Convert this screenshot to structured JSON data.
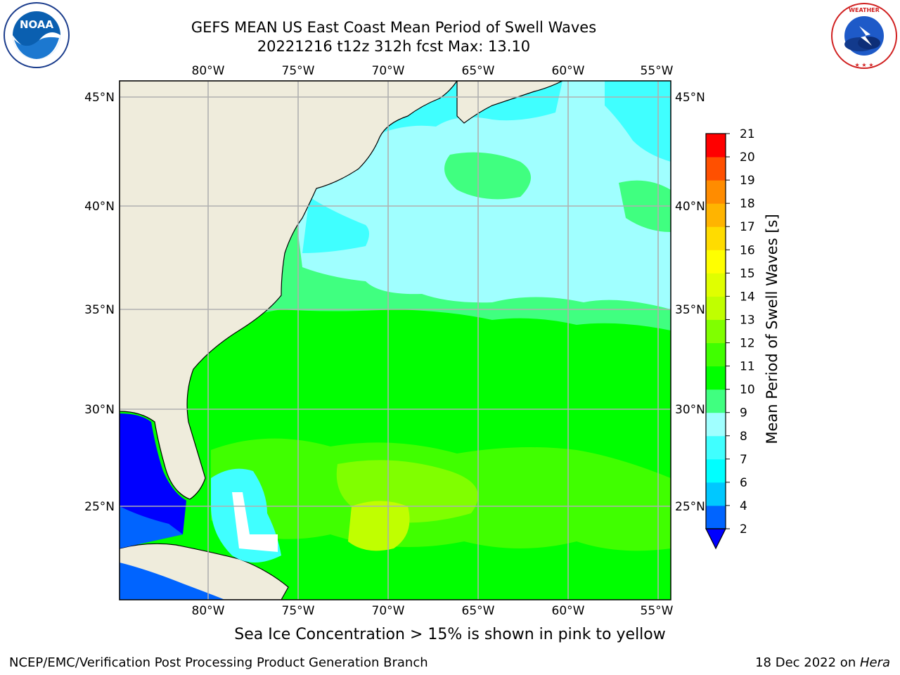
{
  "title": {
    "line1": "GEFS MEAN US East Coast Mean Period of Swell Waves",
    "line2": "20221216 t12z 312h fcst   Max: 13.10"
  },
  "logos": {
    "left": {
      "text": "NOAA",
      "icon": "noaa-logo-icon",
      "ring_text": "NATIONAL OCEANIC AND ATMOSPHERIC ADMINISTRATION · U.S. DEPARTMENT OF COMMERCE"
    },
    "right": {
      "icon": "nws-logo-icon",
      "ring_text": "NATIONAL WEATHER SERVICE"
    }
  },
  "map": {
    "lon_labels": [
      "80°W",
      "75°W",
      "70°W",
      "65°W",
      "60°W",
      "55°W"
    ],
    "lat_labels": [
      "45°N",
      "40°N",
      "35°N",
      "30°N",
      "25°N"
    ],
    "land_color": "#efecdc",
    "grid_color": "#b0b0b0"
  },
  "colorbar": {
    "label": "Mean Period of Swell Waves [s]",
    "ticks": [
      "2",
      "4",
      "6",
      "7",
      "8",
      "9",
      "10",
      "11",
      "12",
      "13",
      "14",
      "15",
      "16",
      "17",
      "18",
      "19",
      "20",
      "21"
    ],
    "colors": [
      "#0064ff",
      "#00c8ff",
      "#00ffff",
      "#40ffff",
      "#a0ffff",
      "#40ff80",
      "#00ff00",
      "#40ff00",
      "#80ff00",
      "#c0ff00",
      "#e0ff00",
      "#ffff00",
      "#ffdc00",
      "#ffb400",
      "#ff8c00",
      "#ff5000",
      "#ff0000"
    ],
    "extend_color": "#0000ff"
  },
  "subnote": "Sea Ice Concentration > 15% is shown in pink to yellow",
  "footer": {
    "left": "NCEP/EMC/Verification Post Processing Product Generation Branch",
    "right_prefix": "18 Dec 2022 on ",
    "right_machine": "Hera"
  }
}
